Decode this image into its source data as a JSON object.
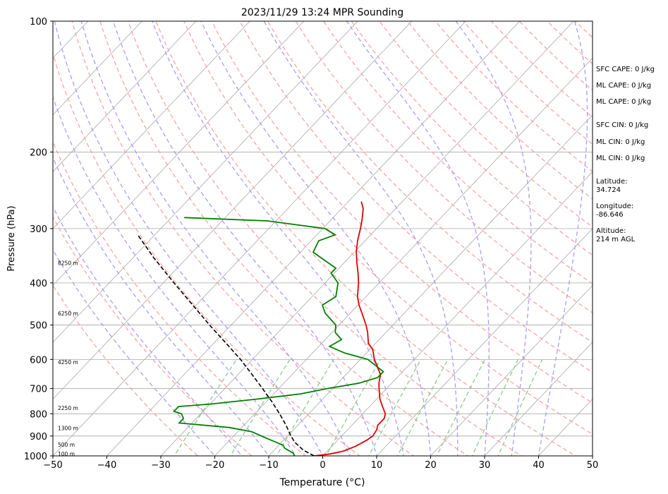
{
  "chart_data": {
    "type": "line",
    "title": "2023/11/29 13:24 MPR Sounding",
    "xlabel": "Temperature (°C)",
    "ylabel": "Pressure (hPa)",
    "xlim": [
      -50,
      50
    ],
    "ylim": [
      1000,
      100
    ],
    "y_scale": "log",
    "skew": "skew-T (isotherms slanted)",
    "x_ticks": [
      "−50",
      "−40",
      "−30",
      "−20",
      "−10",
      "0",
      "10",
      "20",
      "30",
      "40",
      "50"
    ],
    "y_ticks": [
      "100",
      "200",
      "300",
      "400",
      "500",
      "600",
      "700",
      "800",
      "900",
      "1000"
    ],
    "grid": true,
    "height_labels": [
      {
        "label": "100 m",
        "pressure": 988
      },
      {
        "label": "500 m",
        "pressure": 942
      },
      {
        "label": "1300 m",
        "pressure": 862
      },
      {
        "label": "2250 m",
        "pressure": 775
      },
      {
        "label": "4250 m",
        "pressure": 608
      },
      {
        "label": "6250 m",
        "pressure": 470
      },
      {
        "label": "8250 m",
        "pressure": 360
      }
    ],
    "series": [
      {
        "color": "#e00000",
        "points": [
          {
            "p": 1000,
            "t": -1.6
          },
          {
            "p": 990,
            "t": 1.0
          },
          {
            "p": 975,
            "t": 3.0
          },
          {
            "p": 950,
            "t": 4.4
          },
          {
            "p": 920,
            "t": 5.4
          },
          {
            "p": 900,
            "t": 5.8
          },
          {
            "p": 870,
            "t": 5.4
          },
          {
            "p": 850,
            "t": 4.8
          },
          {
            "p": 820,
            "t": 4.8
          },
          {
            "p": 800,
            "t": 4.2
          },
          {
            "p": 770,
            "t": 2.4
          },
          {
            "p": 740,
            "t": 0.6
          },
          {
            "p": 700,
            "t": -1.4
          },
          {
            "p": 680,
            "t": -2.4
          },
          {
            "p": 650,
            "t": -3.6
          },
          {
            "p": 620,
            "t": -5.8
          },
          {
            "p": 600,
            "t": -7.4
          },
          {
            "p": 570,
            "t": -9.4
          },
          {
            "p": 550,
            "t": -11.4
          },
          {
            "p": 520,
            "t": -13.4
          },
          {
            "p": 500,
            "t": -15.0
          },
          {
            "p": 470,
            "t": -17.8
          },
          {
            "p": 450,
            "t": -19.8
          },
          {
            "p": 430,
            "t": -21.6
          },
          {
            "p": 400,
            "t": -23.8
          },
          {
            "p": 380,
            "t": -25.6
          },
          {
            "p": 360,
            "t": -27.6
          },
          {
            "p": 340,
            "t": -29.6
          },
          {
            "p": 320,
            "t": -31.4
          },
          {
            "p": 300,
            "t": -33.0
          },
          {
            "p": 285,
            "t": -34.4
          },
          {
            "p": 270,
            "t": -36.0
          },
          {
            "p": 260,
            "t": -37.6
          }
        ]
      },
      {
        "color": "#008000",
        "points": [
          {
            "p": 1000,
            "t": -5.2
          },
          {
            "p": 985,
            "t": -6.0
          },
          {
            "p": 960,
            "t": -8.4
          },
          {
            "p": 945,
            "t": -9.2
          },
          {
            "p": 910,
            "t": -13.6
          },
          {
            "p": 880,
            "t": -17.4
          },
          {
            "p": 860,
            "t": -22.4
          },
          {
            "p": 840,
            "t": -32.4
          },
          {
            "p": 820,
            "t": -32.4
          },
          {
            "p": 800,
            "t": -33.6
          },
          {
            "p": 790,
            "t": -35.4
          },
          {
            "p": 770,
            "t": -35.4
          },
          {
            "p": 760,
            "t": -30.0
          },
          {
            "p": 740,
            "t": -22.0
          },
          {
            "p": 720,
            "t": -15.0
          },
          {
            "p": 700,
            "t": -11.0
          },
          {
            "p": 680,
            "t": -6.0
          },
          {
            "p": 660,
            "t": -3.6
          },
          {
            "p": 640,
            "t": -3.6
          },
          {
            "p": 600,
            "t": -8.6
          },
          {
            "p": 580,
            "t": -14.0
          },
          {
            "p": 560,
            "t": -18.0
          },
          {
            "p": 540,
            "t": -17.0
          },
          {
            "p": 520,
            "t": -19.4
          },
          {
            "p": 500,
            "t": -20.6
          },
          {
            "p": 470,
            "t": -24.6
          },
          {
            "p": 450,
            "t": -26.6
          },
          {
            "p": 430,
            "t": -25.6
          },
          {
            "p": 400,
            "t": -27.6
          },
          {
            "p": 380,
            "t": -30.6
          },
          {
            "p": 370,
            "t": -30.6
          },
          {
            "p": 340,
            "t": -37.6
          },
          {
            "p": 320,
            "t": -38.6
          },
          {
            "p": 310,
            "t": -36.6
          },
          {
            "p": 300,
            "t": -39.6
          },
          {
            "p": 288,
            "t": -51.6
          },
          {
            "p": 283,
            "t": -67.6
          }
        ]
      },
      {
        "color": "#000000",
        "style": "dashed",
        "points": [
          {
            "p": 1000,
            "t": -1.6
          },
          {
            "p": 970,
            "t": -4.6
          },
          {
            "p": 930,
            "t": -7.6
          },
          {
            "p": 900,
            "t": -9.4
          },
          {
            "p": 850,
            "t": -12.2
          },
          {
            "p": 800,
            "t": -15.4
          },
          {
            "p": 750,
            "t": -19.0
          },
          {
            "p": 700,
            "t": -23.0
          },
          {
            "p": 650,
            "t": -27.4
          },
          {
            "p": 600,
            "t": -32.2
          },
          {
            "p": 550,
            "t": -37.8
          },
          {
            "p": 500,
            "t": -44.0
          },
          {
            "p": 450,
            "t": -50.6
          },
          {
            "p": 400,
            "t": -58.0
          },
          {
            "p": 350,
            "t": -66.2
          },
          {
            "p": 310,
            "t": -73.2
          }
        ]
      }
    ],
    "dry_adiabats_K": [
      250,
      260,
      270,
      280,
      290,
      300,
      310,
      320,
      330,
      340,
      350,
      360,
      370,
      380,
      390,
      400,
      410,
      420,
      430,
      440,
      450,
      460,
      470,
      480,
      490,
      500
    ],
    "moist_adiabats_C": [
      -20,
      -15,
      -10,
      -5,
      0,
      5,
      10,
      15,
      20,
      25,
      30,
      35,
      40
    ],
    "mixing_ratio_gkg": [
      0.4,
      1,
      2,
      4,
      7,
      10,
      16,
      24,
      32
    ]
  },
  "annotations": {
    "sfc_cape": "SFC CAPE: 0 J/kg",
    "ml_cape_1": "ML CAPE: 0 J/kg",
    "ml_cape_2": "ML CAPE: 0 J/kg",
    "sfc_cin": "SFC CIN: 0 J/kg",
    "ml_cin_1": "ML CIN: 0 J/kg",
    "ml_cin_2": "ML CIN: 0 J/kg",
    "latitude_label": "Latitude:",
    "latitude_value": "34.724",
    "longitude_label": "Longitude:",
    "longitude_value": "-86.646",
    "altitude_label": "Altitude:",
    "altitude_value": "214 m AGL"
  },
  "colors": {
    "temperature": "#e00000",
    "dewpoint": "#008000",
    "parcel": "#000000",
    "dry_adiabat": "#f4a6a6",
    "moist_adiabat": "#a79ff0",
    "mixing_ratio": "#8ec98e",
    "isotherm": "#a8a8a8"
  }
}
